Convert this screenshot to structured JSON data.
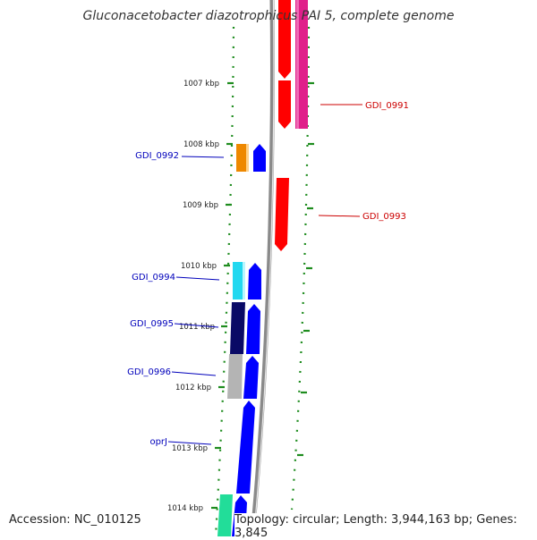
{
  "map": {
    "title": "Gluconacetobacter diazotrophicus PAI 5, complete genome",
    "accession": "Accession: NC_010125",
    "summary": "Topology: circular; Length: 3,944,163 bp; Genes: 3,845"
  },
  "ticks": [
    "1007 kbp",
    "1008 kbp",
    "1009 kbp",
    "1010 kbp",
    "1011 kbp",
    "1012 kbp",
    "1013 kbp",
    "1014 kbp"
  ],
  "genes": [
    {
      "name": "GDI_0991",
      "color": "#cc0000"
    },
    {
      "name": "GDI_0992",
      "color": "#0000bb"
    },
    {
      "name": "GDI_0993",
      "color": "#cc0000"
    },
    {
      "name": "GDI_0994",
      "color": "#0000bb"
    },
    {
      "name": "GDI_0995",
      "color": "#0000bb"
    },
    {
      "name": "GDI_0996",
      "color": "#0000bb"
    },
    {
      "name": "oprJ",
      "color": "#0000bb"
    }
  ],
  "colors": {
    "dots": "#1e8c1e",
    "backbone": "#8a8a8a",
    "forward": "#0000ff",
    "reverse": "#ff0000",
    "magenta": "#e0208a",
    "orange": "#ee8800",
    "cyan": "#22d8f0",
    "navy": "#0a0a66",
    "gray": "#b4b4b4",
    "teal": "#22dd99"
  }
}
